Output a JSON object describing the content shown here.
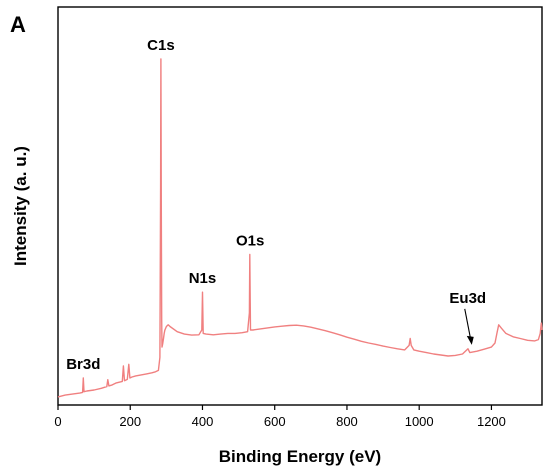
{
  "panel_label": "A",
  "colors": {
    "series": "#f08080",
    "axis": "#000000"
  },
  "chart_data": {
    "type": "line",
    "title": "",
    "xlabel": "Binding Energy (eV)",
    "ylabel": "Intensity (a. u.)",
    "xlim": [
      0,
      1340
    ],
    "ylim": [
      0,
      100
    ],
    "y_ticks_shown": false,
    "x_ticks": [
      0,
      200,
      400,
      600,
      800,
      1000,
      1200
    ],
    "x_tick_labels": [
      "0",
      "200",
      "400",
      "600",
      "800",
      "1000",
      "1200"
    ],
    "grid": false,
    "legend": "none",
    "series": [
      {
        "x": [
          0,
          20,
          40,
          60,
          68,
          70,
          72,
          80,
          100,
          120,
          135,
          138,
          141,
          150,
          160,
          178,
          181,
          184,
          192,
          196,
          199,
          205,
          215,
          230,
          245,
          260,
          270,
          278,
          282,
          284,
          285,
          286,
          287,
          288,
          290,
          292,
          294,
          296,
          300,
          305,
          310,
          330,
          350,
          370,
          390,
          398,
          400,
          402,
          410,
          430,
          450,
          470,
          490,
          510,
          525,
          530,
          531,
          532,
          533,
          536,
          540,
          560,
          580,
          600,
          620,
          640,
          660,
          680,
          700,
          720,
          740,
          760,
          780,
          800,
          820,
          840,
          860,
          880,
          900,
          920,
          940,
          960,
          972,
          975,
          978,
          985,
          1000,
          1020,
          1040,
          1060,
          1080,
          1100,
          1120,
          1135,
          1140,
          1160,
          1180,
          1200,
          1210,
          1215,
          1220,
          1228,
          1240,
          1260,
          1280,
          1300,
          1320,
          1330,
          1335,
          1338,
          1340
        ],
        "y": [
          1.5,
          2.0,
          2.3,
          2.6,
          2.8,
          7.0,
          3.0,
          3.2,
          3.5,
          4.0,
          4.5,
          6.5,
          4.7,
          5.0,
          5.5,
          6.0,
          10.5,
          6.2,
          6.6,
          11.0,
          7.0,
          7.3,
          7.6,
          7.9,
          8.2,
          8.5,
          8.8,
          9.2,
          13.0,
          63.0,
          100.0,
          57.0,
          24.0,
          16.0,
          17.0,
          18.5,
          20.0,
          21.0,
          22.0,
          22.5,
          22.0,
          20.5,
          19.8,
          19.5,
          19.6,
          21.0,
          32.0,
          20.0,
          19.8,
          19.6,
          19.8,
          20.0,
          20.0,
          20.2,
          20.5,
          26.0,
          43.0,
          30.0,
          21.0,
          21.0,
          21.0,
          21.3,
          21.6,
          21.9,
          22.1,
          22.3,
          22.4,
          22.2,
          21.8,
          21.3,
          20.8,
          20.2,
          19.6,
          18.9,
          18.3,
          17.7,
          17.2,
          16.8,
          16.3,
          15.9,
          15.5,
          15.2,
          16.5,
          18.5,
          16.5,
          15.2,
          14.8,
          14.4,
          14.0,
          13.7,
          13.4,
          13.6,
          14.0,
          15.5,
          14.4,
          14.8,
          15.4,
          16.0,
          17.2,
          20.0,
          22.5,
          21.5,
          20.0,
          19.0,
          18.5,
          18.0,
          17.8,
          18.2,
          20.0,
          23.0,
          21.0
        ]
      }
    ],
    "annotations": [
      {
        "text": "C1s",
        "x": 285,
        "y": 100
      },
      {
        "text": "N1s",
        "x": 400,
        "y": 32
      },
      {
        "text": "O1s",
        "x": 532,
        "y": 43
      },
      {
        "text": "Br3d",
        "x": 70,
        "y": 7
      },
      {
        "text": "Eu3d",
        "x": 1140,
        "y": 15.5,
        "arrow": true
      }
    ]
  }
}
